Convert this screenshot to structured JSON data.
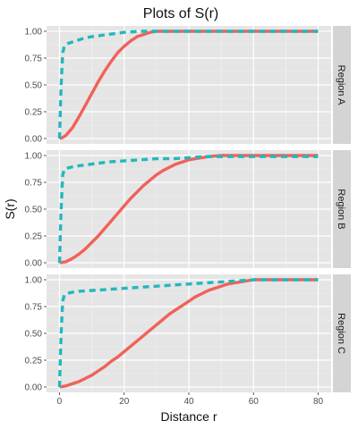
{
  "chart_data": {
    "type": "line",
    "title": "Plots of S(r)",
    "xlabel": "Distance r",
    "ylabel": "S(r)",
    "xlim": [
      0,
      80
    ],
    "ylim": [
      0,
      1
    ],
    "x_ticks": [
      0,
      20,
      40,
      60,
      80
    ],
    "y_ticks": [
      0,
      0.25,
      0.5,
      0.75,
      1
    ],
    "x_tick_labels": [
      "0",
      "20",
      "40",
      "60",
      "80"
    ],
    "y_tick_labels": [
      "0.00",
      "0.25",
      "0.50",
      "0.75",
      "1.00"
    ],
    "grid": true,
    "legend": "none",
    "colors": {
      "solid": "#f0625a",
      "dashed": "#22b8be",
      "panel_bg": "#e5e5e5",
      "strip_bg": "#d4d4d4"
    },
    "panels": [
      {
        "label": "Region A",
        "series": [
          {
            "style": "solid",
            "x": [
              0,
              1,
              2,
              4,
              6,
              8,
              10,
              12,
              14,
              16,
              18,
              20,
              22,
              24,
              26,
              28,
              30,
              80
            ],
            "y": [
              0,
              0.01,
              0.03,
              0.1,
              0.2,
              0.31,
              0.42,
              0.53,
              0.63,
              0.72,
              0.8,
              0.86,
              0.91,
              0.95,
              0.97,
              0.99,
              1.0,
              1.0
            ]
          },
          {
            "style": "dashed",
            "x": [
              0,
              0.5,
              1,
              1.5,
              2,
              4,
              6,
              8,
              10,
              15,
              20,
              25,
              30,
              80
            ],
            "y": [
              0,
              0.5,
              0.8,
              0.86,
              0.88,
              0.9,
              0.92,
              0.94,
              0.95,
              0.97,
              0.99,
              1.0,
              1.0,
              1.0
            ]
          }
        ]
      },
      {
        "label": "Region B",
        "series": [
          {
            "style": "solid",
            "x": [
              0,
              2,
              4,
              6,
              8,
              10,
              12,
              14,
              16,
              18,
              20,
              22,
              24,
              26,
              28,
              30,
              32,
              34,
              36,
              38,
              40,
              42,
              44,
              46,
              48,
              50,
              80
            ],
            "y": [
              0,
              0.01,
              0.04,
              0.08,
              0.13,
              0.19,
              0.25,
              0.32,
              0.39,
              0.46,
              0.53,
              0.6,
              0.66,
              0.72,
              0.77,
              0.82,
              0.86,
              0.89,
              0.92,
              0.94,
              0.96,
              0.97,
              0.98,
              0.99,
              0.995,
              1.0,
              1.0
            ]
          },
          {
            "style": "dashed",
            "x": [
              0,
              0.5,
              1,
              1.5,
              2,
              5,
              10,
              15,
              20,
              25,
              30,
              35,
              40,
              45,
              50,
              60,
              80
            ],
            "y": [
              0,
              0.5,
              0.82,
              0.87,
              0.88,
              0.9,
              0.92,
              0.94,
              0.95,
              0.96,
              0.97,
              0.97,
              0.98,
              0.99,
              0.99,
              0.99,
              0.99
            ]
          }
        ]
      },
      {
        "label": "Region C",
        "series": [
          {
            "style": "solid",
            "x": [
              0,
              2,
              4,
              6,
              8,
              10,
              12,
              14,
              16,
              18,
              20,
              22,
              24,
              26,
              28,
              30,
              32,
              34,
              36,
              38,
              40,
              42,
              44,
              46,
              48,
              50,
              52,
              54,
              56,
              58,
              60,
              80
            ],
            "y": [
              0,
              0.01,
              0.03,
              0.05,
              0.08,
              0.11,
              0.15,
              0.19,
              0.24,
              0.28,
              0.33,
              0.38,
              0.43,
              0.48,
              0.53,
              0.58,
              0.63,
              0.68,
              0.72,
              0.76,
              0.8,
              0.84,
              0.87,
              0.9,
              0.92,
              0.94,
              0.96,
              0.97,
              0.98,
              0.99,
              1.0,
              1.0
            ]
          },
          {
            "style": "dashed",
            "x": [
              0,
              0.5,
              1,
              1.5,
              2,
              5,
              10,
              15,
              20,
              25,
              30,
              35,
              40,
              45,
              50,
              55,
              60,
              80
            ],
            "y": [
              0,
              0.5,
              0.8,
              0.86,
              0.87,
              0.89,
              0.9,
              0.91,
              0.92,
              0.93,
              0.94,
              0.95,
              0.96,
              0.97,
              0.98,
              0.99,
              1.0,
              1.0
            ]
          }
        ]
      }
    ]
  }
}
